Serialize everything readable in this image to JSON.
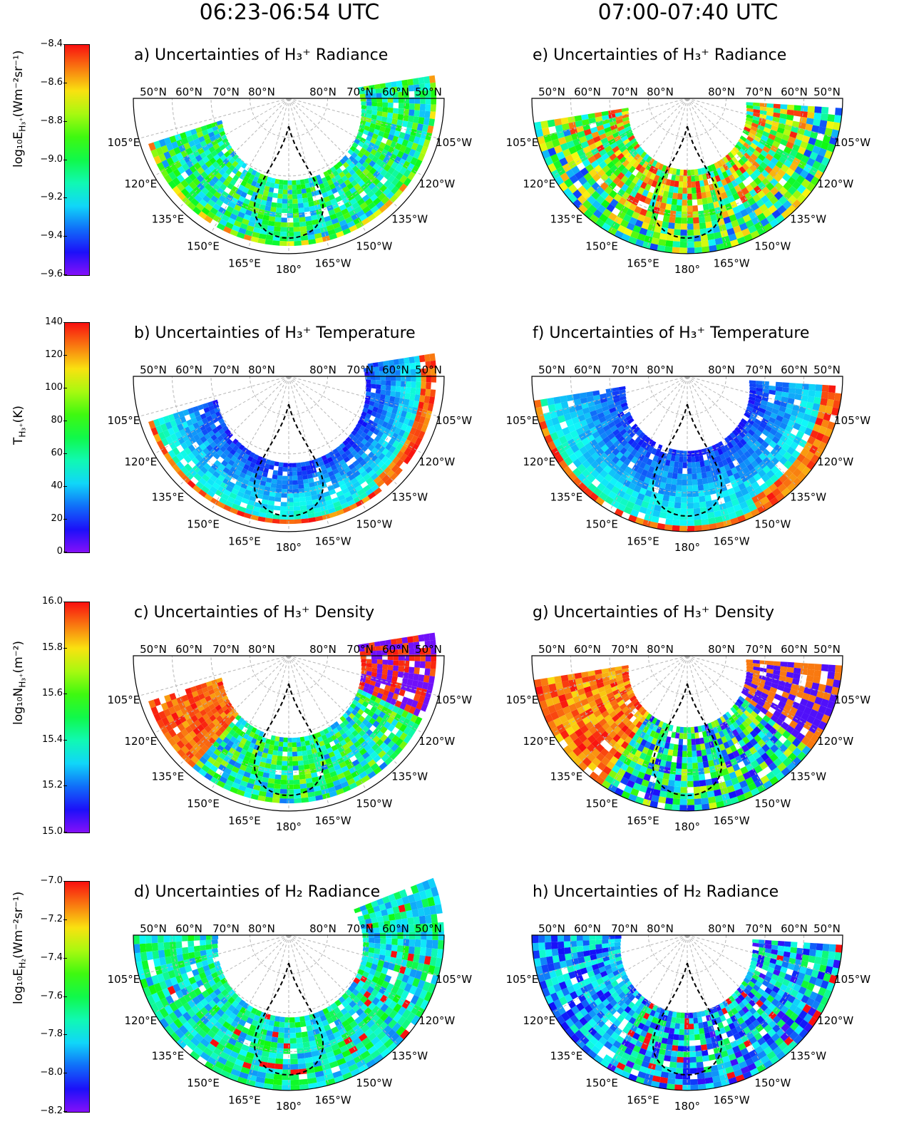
{
  "col_titles": [
    "06:23-06:54 UTC",
    "07:00-07:40 UTC"
  ],
  "colorbars": [
    {
      "label": "log₁₀E",
      "label_sub": "H₃⁺",
      "label_tail": "(Wm⁻²sr⁻¹)",
      "ticks": [
        "−8.4",
        "−8.6",
        "−8.8",
        "−9.0",
        "−9.2",
        "−9.4",
        "−9.6"
      ]
    },
    {
      "label": "T",
      "label_sub": "H₃⁺",
      "label_tail": "(K)",
      "ticks": [
        "140",
        "120",
        "100",
        "80",
        "60",
        "40",
        "20",
        "0"
      ]
    },
    {
      "label": "log₁₀N",
      "label_sub": "H₃⁺",
      "label_tail": "(m⁻²)",
      "ticks": [
        "16.0",
        "15.8",
        "15.6",
        "15.4",
        "15.2",
        "15.0"
      ]
    },
    {
      "label": "log₁₀E",
      "label_sub": "H₂",
      "label_tail": "(Wm⁻²sr⁻¹)",
      "ticks": [
        "−7.0",
        "−7.2",
        "−7.4",
        "−7.6",
        "−7.8",
        "−8.0",
        "−8.2"
      ]
    }
  ],
  "panel_titles": [
    [
      "a) Uncertainties of H₃⁺ Radiance",
      "e) Uncertainties of H₃⁺ Radiance"
    ],
    [
      "b) Uncertainties of H₃⁺ Temperature",
      "f) Uncertainties of H₃⁺ Temperature"
    ],
    [
      "c) Uncertainties of H₃⁺ Density",
      "g) Uncertainties of H₃⁺ Density"
    ],
    [
      "d) Uncertainties of H₂ Radiance",
      "h) Uncertainties of H₂ Radiance"
    ]
  ],
  "polar_labels": {
    "lat_left": [
      "50°N",
      "60°N",
      "70°N",
      "80°N"
    ],
    "lat_right": [
      "80°N",
      "70°N",
      "60°N",
      "50°N"
    ],
    "lon": [
      "105°E",
      "120°E",
      "135°E",
      "150°E",
      "165°E",
      "180°",
      "165°W",
      "150°W",
      "135°W",
      "120°W",
      "105°W"
    ]
  },
  "chart_data": {
    "type": "heatmap",
    "projection": "polar (north pole, latitude 50°N–90°N, longitude 90°E–90°W)",
    "colormap": "rainbow",
    "rows": [
      {
        "quantity": "H₃⁺ Radiance",
        "clim": [
          -9.6,
          -8.4
        ]
      },
      {
        "quantity": "H₃⁺ Temperature",
        "clim": [
          0,
          140
        ]
      },
      {
        "quantity": "H₃⁺ Density",
        "clim": [
          15.0,
          16.0
        ]
      },
      {
        "quantity": "H₂ Radiance",
        "clim": [
          -8.2,
          -7.0
        ]
      }
    ],
    "grid": true,
    "overlay": "dashed black boundary contour"
  }
}
